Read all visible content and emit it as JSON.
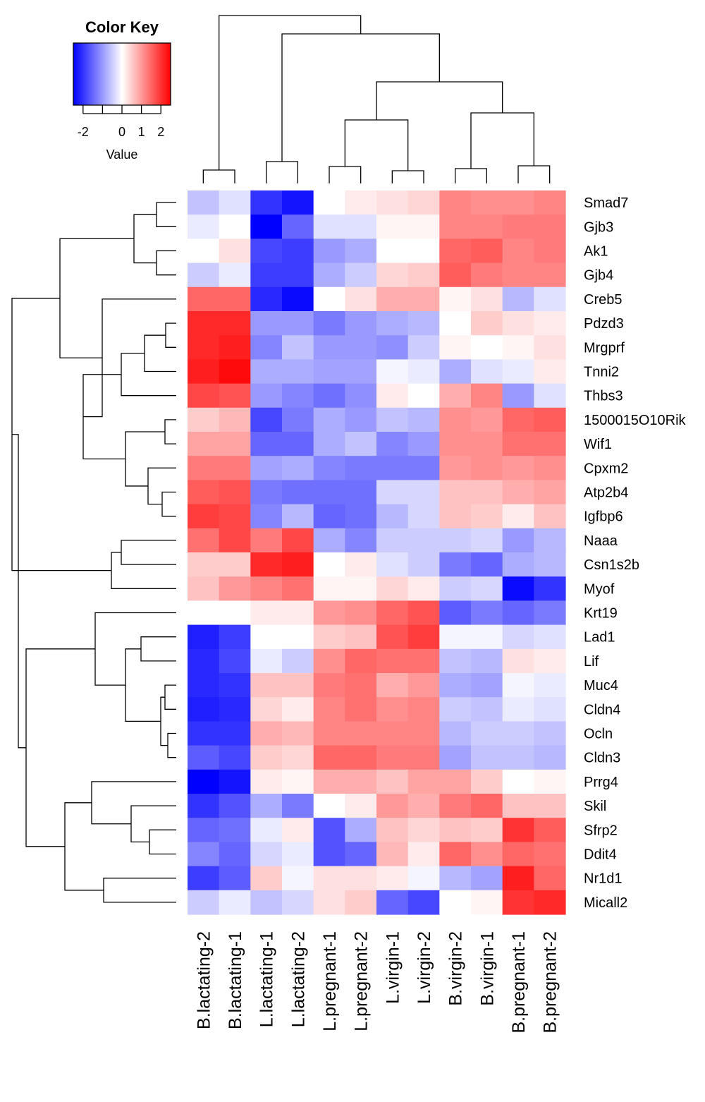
{
  "chart_data": {
    "type": "heatmap",
    "colorscale": {
      "low": "#0000ff",
      "mid": "#ffffff",
      "high": "#ff0000",
      "range": [
        -2.5,
        2.5
      ]
    },
    "color_key": {
      "title": "Color Key",
      "axis_label": "Value",
      "ticks": [
        {
          "value": -2,
          "label": "-2"
        },
        {
          "value": -1,
          "label": ""
        },
        {
          "value": 0,
          "label": "0"
        },
        {
          "value": 1,
          "label": "1"
        },
        {
          "value": 2,
          "label": "2"
        }
      ]
    },
    "columns": [
      "B.lactating-2",
      "B.lactating-1",
      "L.lactating-1",
      "L.lactating-2",
      "L.pregnant-1",
      "L.pregnant-2",
      "L.virgin-1",
      "L.virgin-2",
      "B.virgin-2",
      "B.virgin-1",
      "B.pregnant-1",
      "B.pregnant-2"
    ],
    "rows": [
      "Smad7",
      "Gjb3",
      "Ak1",
      "Gjb4",
      "Creb5",
      "Pdzd3",
      "Mrgprf",
      "Tnni2",
      "Thbs3",
      "1500015O10Rik",
      "Wif1",
      "Cpxm2",
      "Atp2b4",
      "Igfbp6",
      "Naaa",
      "Csn1s2b",
      "Myof",
      "Krt19",
      "Lad1",
      "Lif",
      "Muc4",
      "Cldn4",
      "Ocln",
      "Cldn3",
      "Prrg4",
      "Skil",
      "Sfrp2",
      "Ddit4",
      "Nr1d1",
      "Micall2"
    ],
    "values": [
      [
        -0.6,
        -0.3,
        -2.0,
        -2.3,
        0.0,
        0.2,
        0.3,
        0.4,
        1.2,
        1.1,
        1.1,
        1.2
      ],
      [
        -0.2,
        0.0,
        -2.5,
        -1.5,
        -0.3,
        -0.3,
        0.1,
        0.1,
        1.2,
        1.2,
        1.3,
        1.3
      ],
      [
        0.0,
        0.3,
        -1.8,
        -1.9,
        -1.0,
        -0.8,
        0.0,
        0.0,
        1.5,
        1.6,
        1.2,
        1.3
      ],
      [
        -0.5,
        -0.2,
        -1.9,
        -1.9,
        -0.8,
        -0.5,
        0.4,
        0.5,
        1.6,
        1.3,
        1.2,
        1.2
      ],
      [
        1.5,
        1.5,
        -2.1,
        -2.4,
        0.0,
        0.3,
        0.8,
        0.8,
        0.1,
        0.3,
        -0.7,
        -0.3
      ],
      [
        2.1,
        2.1,
        -1.0,
        -1.0,
        -1.3,
        -1.0,
        -0.8,
        -0.7,
        0.0,
        0.5,
        0.3,
        0.2
      ],
      [
        2.1,
        2.2,
        -1.2,
        -0.6,
        -1.0,
        -1.0,
        -1.1,
        -0.5,
        0.1,
        0.0,
        0.1,
        0.3
      ],
      [
        2.2,
        2.4,
        -0.8,
        -0.8,
        -0.9,
        -0.9,
        -0.1,
        -0.2,
        -0.8,
        -0.3,
        -0.2,
        0.2
      ],
      [
        1.8,
        1.7,
        -1.0,
        -1.2,
        -1.4,
        -1.1,
        0.2,
        0.0,
        0.8,
        1.2,
        -1.0,
        -0.3
      ],
      [
        0.5,
        0.7,
        -1.8,
        -1.3,
        -0.8,
        -1.0,
        -0.6,
        -0.7,
        1.1,
        1.0,
        1.5,
        1.6
      ],
      [
        0.9,
        0.9,
        -1.5,
        -1.5,
        -0.8,
        -0.6,
        -1.2,
        -1.0,
        1.1,
        1.1,
        1.4,
        1.4
      ],
      [
        1.3,
        1.3,
        -0.9,
        -0.8,
        -1.2,
        -1.3,
        -1.3,
        -1.3,
        1.0,
        1.1,
        1.0,
        1.1
      ],
      [
        1.6,
        1.7,
        -1.3,
        -1.4,
        -1.4,
        -1.4,
        -0.4,
        -0.4,
        0.6,
        0.6,
        0.8,
        0.9
      ],
      [
        1.9,
        1.8,
        -1.2,
        -0.7,
        -1.5,
        -1.4,
        -0.7,
        -0.4,
        0.6,
        0.5,
        0.2,
        0.6
      ],
      [
        1.4,
        1.8,
        1.3,
        1.8,
        -0.8,
        -1.2,
        -0.5,
        -0.5,
        -0.5,
        -0.4,
        -1.0,
        -0.7
      ],
      [
        0.5,
        0.5,
        2.1,
        2.2,
        0.0,
        0.2,
        -0.3,
        -0.5,
        -1.3,
        -1.5,
        -0.8,
        -0.7
      ],
      [
        0.6,
        1.0,
        1.2,
        1.4,
        0.1,
        0.1,
        0.4,
        0.2,
        -0.5,
        -0.4,
        -2.4,
        -2.0
      ],
      [
        0.0,
        0.0,
        0.2,
        0.2,
        1.0,
        1.1,
        1.5,
        1.7,
        -1.6,
        -1.3,
        -1.5,
        -1.3
      ],
      [
        -2.2,
        -1.9,
        0.0,
        0.0,
        0.5,
        0.6,
        1.7,
        1.9,
        -0.1,
        -0.1,
        -0.4,
        -0.3
      ],
      [
        -2.1,
        -1.8,
        -0.2,
        -0.5,
        1.1,
        1.5,
        1.4,
        1.4,
        -0.6,
        -0.7,
        0.3,
        0.2
      ],
      [
        -2.1,
        -2.0,
        0.6,
        0.6,
        1.3,
        1.4,
        0.8,
        1.0,
        -0.8,
        -0.9,
        -0.1,
        -0.2
      ],
      [
        -2.2,
        -2.1,
        0.4,
        0.2,
        1.2,
        1.4,
        1.1,
        1.2,
        -0.5,
        -0.6,
        -0.2,
        -0.3
      ],
      [
        -2.0,
        -2.0,
        0.8,
        0.7,
        1.2,
        1.2,
        1.2,
        1.2,
        -0.7,
        -0.5,
        -0.5,
        -0.6
      ],
      [
        -1.6,
        -1.8,
        0.5,
        0.4,
        1.5,
        1.5,
        1.3,
        1.3,
        -0.9,
        -0.6,
        -0.6,
        -0.7
      ],
      [
        -2.5,
        -2.3,
        0.2,
        0.1,
        0.8,
        0.8,
        0.6,
        0.9,
        0.9,
        0.5,
        0.0,
        0.1
      ],
      [
        -2.0,
        -1.7,
        -0.8,
        -1.3,
        0.0,
        0.2,
        1.0,
        0.8,
        1.3,
        1.5,
        0.6,
        0.6
      ],
      [
        -1.5,
        -1.4,
        -0.2,
        0.2,
        -1.7,
        -0.8,
        0.6,
        0.4,
        0.6,
        0.5,
        2.0,
        1.6
      ],
      [
        -1.2,
        -1.5,
        -0.4,
        -0.2,
        -1.7,
        -1.5,
        0.7,
        0.2,
        1.5,
        1.1,
        1.5,
        1.4
      ],
      [
        -1.9,
        -1.6,
        0.5,
        -0.1,
        0.3,
        0.3,
        0.2,
        -0.1,
        -0.7,
        -0.9,
        2.2,
        1.5
      ],
      [
        -0.5,
        -0.2,
        -0.6,
        -0.4,
        0.3,
        0.5,
        -1.5,
        -1.8,
        0.0,
        0.1,
        2.0,
        2.1
      ]
    ]
  }
}
